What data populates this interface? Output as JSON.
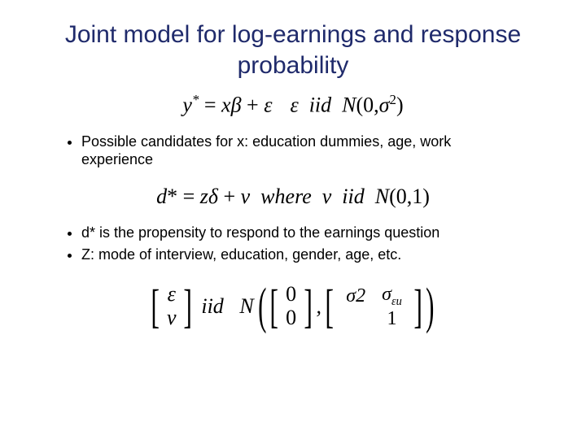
{
  "title_text": "Joint model for  log-earnings and response probability",
  "title_color": "#1f2a6b",
  "title_fontsize": 30,
  "body_fontsize": 18,
  "equation_fontsize": 26,
  "eq1_html": "y<span class='sup'>*</span> <span class='up'>=</span> x&beta; <span class='up'>+</span> &epsilon;<span class='space'></span>&epsilon;&nbsp;&nbsp;iid&nbsp;&nbsp;N<span class='up'>(0,</span>&sigma;<span class='sup up'>2</span><span class='up'>)</span>",
  "bullets1": [
    "Possible candidates for x: education dummies, age, work experience"
  ],
  "eq2_html": "d<span class='up'>*</span> <span class='up'>=</span> z&delta; <span class='up'>+</span> &nu;&nbsp;&nbsp;where&nbsp;&nbsp;&nu;&nbsp;&nbsp;iid&nbsp;&nbsp;N<span class='up'>(0,1)</span>",
  "bullets2": [
    "d* is the propensity to respond to the earnings question",
    "Z: mode of interview, education, gender, age, etc."
  ],
  "joint": {
    "vec_rows": [
      "&epsilon;",
      "&nu;"
    ],
    "iid_text": "iid",
    "N_text": "N",
    "mean_rows": [
      "0",
      "0"
    ],
    "cov_rows": [
      [
        "&sigma;<span class='sup up'>2</span>",
        "&sigma;<span class='sub'>&epsilon;u</span>"
      ],
      [
        "",
        "1"
      ]
    ]
  }
}
